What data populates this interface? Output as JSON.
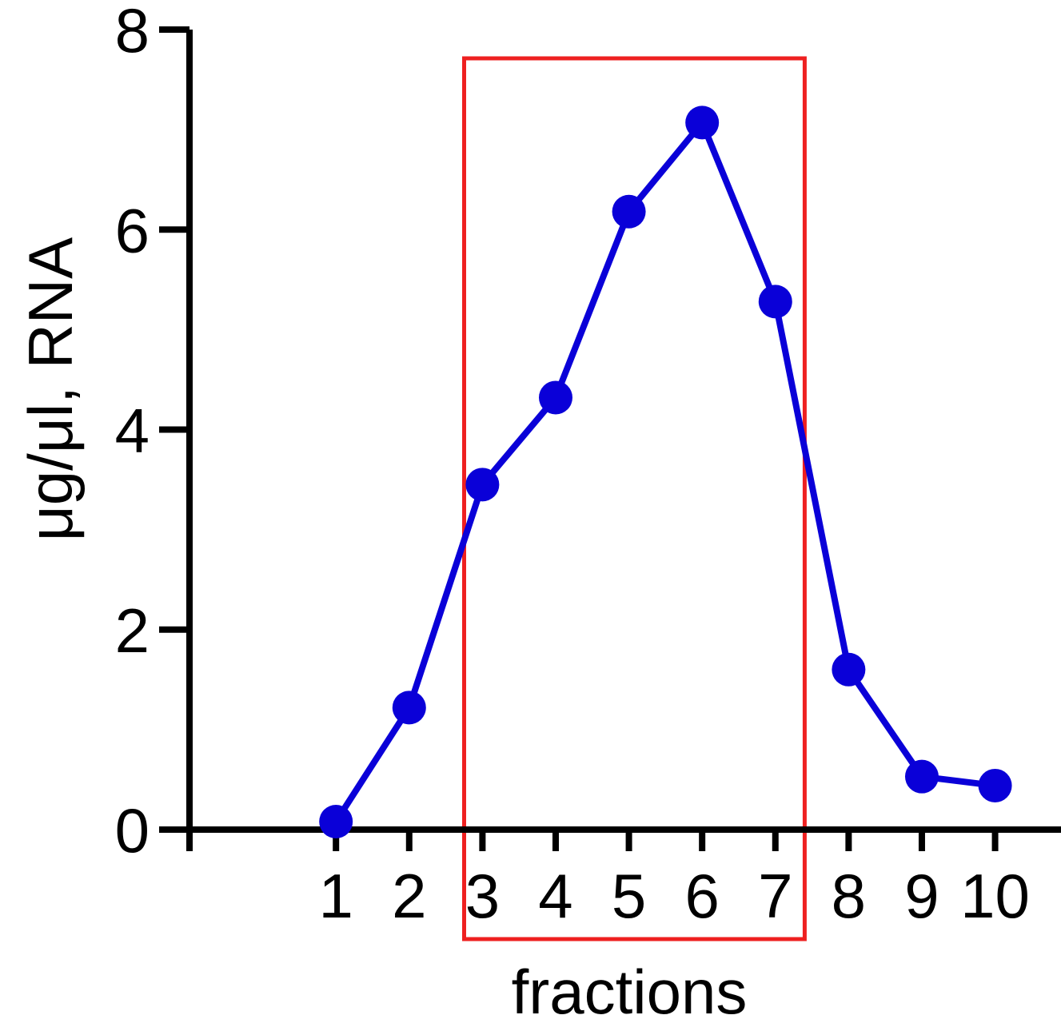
{
  "chart_data": {
    "type": "line",
    "xlabel": "fractions",
    "ylabel": "μg/μl, RNA",
    "categories": [
      "1",
      "2",
      "3",
      "4",
      "5",
      "6",
      "7",
      "8",
      "9",
      "10"
    ],
    "x": [
      1,
      2,
      3,
      4,
      5,
      6,
      7,
      8,
      9,
      10
    ],
    "series": [
      {
        "values": [
          0.08,
          1.22,
          3.45,
          4.32,
          6.18,
          7.07,
          5.28,
          1.6,
          0.53,
          0.44
        ]
      }
    ],
    "xlim": [
      -1,
      10.9
    ],
    "ylim": [
      0,
      8
    ],
    "yticks": [
      "0",
      "2",
      "4",
      "6",
      "8"
    ],
    "ytick_values": [
      0,
      2,
      4,
      6,
      8
    ],
    "highlight": {
      "from": 2.75,
      "to": 7.4,
      "color": "#ee2020"
    },
    "series_color": "#0a00d8",
    "grid": false
  }
}
